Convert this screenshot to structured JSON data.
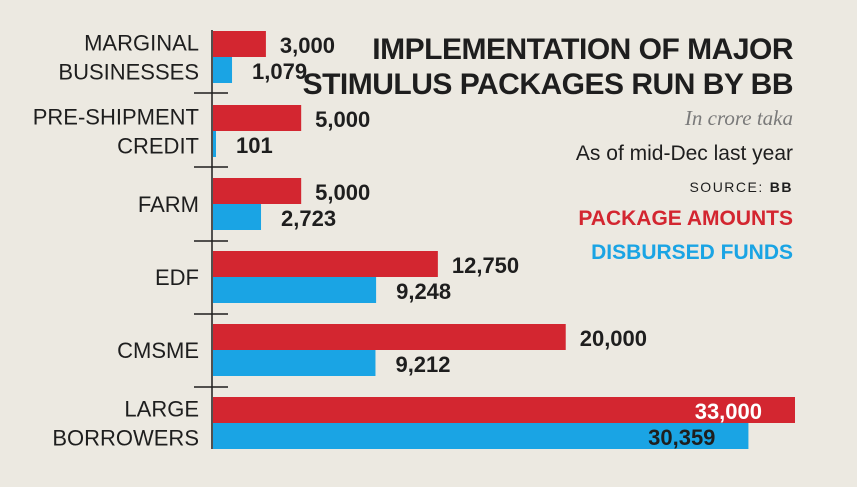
{
  "chart_data": {
    "type": "bar",
    "orientation": "horizontal",
    "title": "IMPLEMENTATION OF MAJOR STIMULUS PACKAGES RUN BY BB",
    "title_lines": [
      "IMPLEMENTATION OF MAJOR",
      "STIMULUS PACKAGES RUN BY BB"
    ],
    "unit": "In crore taka",
    "as_of": "As of mid-Dec last year",
    "source_label": "SOURCE:",
    "source": "BB",
    "categories": [
      [
        "MARGINAL",
        "BUSINESSES"
      ],
      [
        "PRE-SHIPMENT",
        "CREDIT"
      ],
      [
        "FARM"
      ],
      [
        "EDF"
      ],
      [
        "CMSME"
      ],
      [
        "LARGE",
        "BORROWERS"
      ]
    ],
    "series": [
      {
        "name": "PACKAGE AMOUNTS",
        "color": "#d32630",
        "values": [
          3000,
          5000,
          5000,
          12750,
          20000,
          33000
        ],
        "labels": [
          "3,000",
          "5,000",
          "5,000",
          "12,750",
          "20,000",
          "33,000"
        ]
      },
      {
        "name": "DISBURSED FUNDS",
        "color": "#1aa4e4",
        "values": [
          1079,
          101,
          2723,
          9248,
          9212,
          30359
        ],
        "labels": [
          "1,079",
          "101",
          "2,723",
          "9,248",
          "9,212",
          "30,359"
        ]
      }
    ],
    "xlim": [
      0,
      33000
    ],
    "grid": false,
    "legend": "right"
  }
}
